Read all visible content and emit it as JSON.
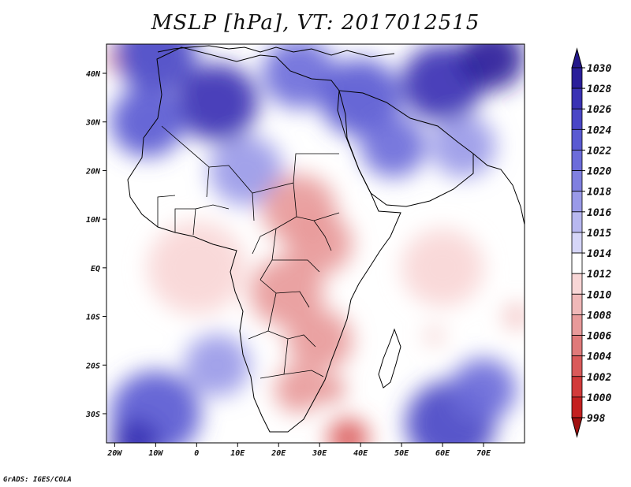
{
  "title": "MSLP [hPa], VT: 2017012515",
  "footer": "GrADS: IGES/COLA",
  "map": {
    "lon_range": [
      -22,
      80
    ],
    "lat_range": [
      -36,
      46
    ],
    "lon_ticks": [
      {
        "lon": -20,
        "label": "20W"
      },
      {
        "lon": -10,
        "label": "10W"
      },
      {
        "lon": 0,
        "label": "0"
      },
      {
        "lon": 10,
        "label": "10E"
      },
      {
        "lon": 20,
        "label": "20E"
      },
      {
        "lon": 30,
        "label": "30E"
      },
      {
        "lon": 40,
        "label": "40E"
      },
      {
        "lon": 50,
        "label": "50E"
      },
      {
        "lon": 60,
        "label": "60E"
      },
      {
        "lon": 70,
        "label": "70E"
      }
    ],
    "lat_ticks": [
      {
        "lat": 40,
        "label": "40N"
      },
      {
        "lat": 30,
        "label": "30N"
      },
      {
        "lat": 20,
        "label": "20N"
      },
      {
        "lat": 10,
        "label": "10N"
      },
      {
        "lat": 0,
        "label": "EQ"
      },
      {
        "lat": -10,
        "label": "10S"
      },
      {
        "lat": -20,
        "label": "20S"
      },
      {
        "lat": -30,
        "label": "30S"
      }
    ]
  },
  "colorbar": {
    "labels": [
      "1030",
      "1028",
      "1026",
      "1024",
      "1022",
      "1020",
      "1018",
      "1016",
      "1015",
      "1014",
      "1012",
      "1010",
      "1008",
      "1006",
      "1004",
      "1002",
      "1000",
      "998"
    ],
    "colors": [
      "#2a1e9a",
      "#3a32b4",
      "#4a46c6",
      "#5a5ad2",
      "#6c6cda",
      "#8080e0",
      "#9a9ae8",
      "#b8b8f0",
      "#d6d6f8",
      "#ffffff",
      "#f8d6d6",
      "#f0b8b8",
      "#e89a9a",
      "#e07a7a",
      "#da5a5a",
      "#d23a3a",
      "#c42020",
      "#a81414"
    ],
    "top_color": "#24188a",
    "bottom_color": "#a01010"
  },
  "pressure_field": {
    "background": 1014,
    "centers": [
      {
        "lon": -20,
        "lat": 43,
        "p": 1008,
        "r": 3
      },
      {
        "lon": -10,
        "lat": 44,
        "p": 1026,
        "r": 10
      },
      {
        "lon": 5,
        "lat": 34,
        "p": 1028,
        "r": 10
      },
      {
        "lon": -12,
        "lat": 30,
        "p": 1024,
        "r": 9
      },
      {
        "lon": 25,
        "lat": 40,
        "p": 1022,
        "r": 9
      },
      {
        "lon": 40,
        "lat": 35,
        "p": 1024,
        "r": 10
      },
      {
        "lon": 60,
        "lat": 38,
        "p": 1028,
        "r": 10
      },
      {
        "lon": 72,
        "lat": 43,
        "p": 1030,
        "r": 8
      },
      {
        "lon": 48,
        "lat": 25,
        "p": 1022,
        "r": 8
      },
      {
        "lon": 65,
        "lat": 25,
        "p": 1018,
        "r": 8
      },
      {
        "lon": 12,
        "lat": 20,
        "p": 1018,
        "r": 9
      },
      {
        "lon": 25,
        "lat": 12,
        "p": 1008,
        "r": 9
      },
      {
        "lon": 30,
        "lat": 5,
        "p": 1008,
        "r": 8
      },
      {
        "lon": 22,
        "lat": -5,
        "p": 1008,
        "r": 9
      },
      {
        "lon": 30,
        "lat": -15,
        "p": 1008,
        "r": 8
      },
      {
        "lon": 25,
        "lat": -25,
        "p": 1008,
        "r": 6
      },
      {
        "lon": 33,
        "lat": -25,
        "p": 1006,
        "r": 3
      },
      {
        "lon": 37,
        "lat": -35,
        "p": 1004,
        "r": 5
      },
      {
        "lon": 0,
        "lat": 0,
        "p": 1012,
        "r": 12
      },
      {
        "lon": 60,
        "lat": 0,
        "p": 1012,
        "r": 10
      },
      {
        "lon": 78,
        "lat": -10,
        "p": 1010,
        "r": 3
      },
      {
        "lon": 58,
        "lat": -14,
        "p": 1010,
        "r": 2
      },
      {
        "lon": -10,
        "lat": -30,
        "p": 1024,
        "r": 11
      },
      {
        "lon": -15,
        "lat": -36,
        "p": 1028,
        "r": 6
      },
      {
        "lon": 62,
        "lat": -32,
        "p": 1026,
        "r": 11
      },
      {
        "lon": 70,
        "lat": -25,
        "p": 1022,
        "r": 8
      },
      {
        "lon": 5,
        "lat": -20,
        "p": 1018,
        "r": 8
      }
    ]
  }
}
